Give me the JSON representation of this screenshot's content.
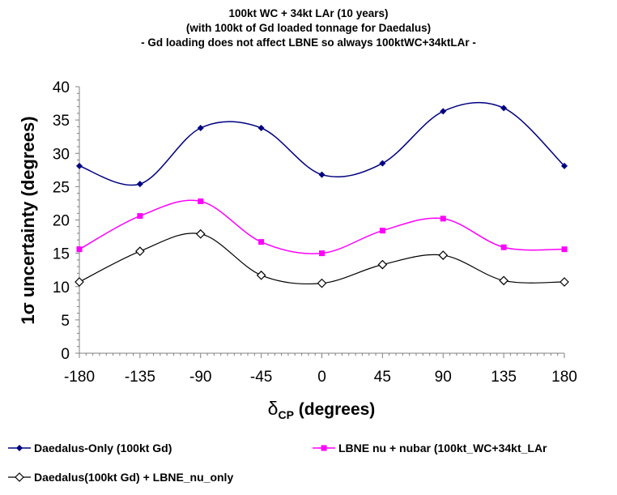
{
  "chart_data": {
    "type": "line",
    "title": [
      "100kt WC + 34kt LAr (10 years)",
      "(with 100kt of Gd loaded tonnage for Daedalus)",
      "- Gd loading does not affect LBNE so always 100ktWC+34ktLAr -"
    ],
    "xlabel_main": "δ",
    "xlabel_sub": "CP",
    "xlabel_rest": " (degrees)",
    "ylabel": "1σ uncertainty (degrees)",
    "x": [
      -180,
      -135,
      -90,
      -45,
      0,
      45,
      90,
      135,
      180
    ],
    "xlim": [
      -180,
      180
    ],
    "ylim": [
      0,
      40
    ],
    "xticks": [
      "-180",
      "-135",
      "-90",
      "-45",
      "0",
      "45",
      "90",
      "135",
      "180"
    ],
    "yticks": [
      "0",
      "5",
      "10",
      "15",
      "20",
      "25",
      "30",
      "35",
      "40"
    ],
    "grid": false,
    "smooth": true,
    "legend_position": "bottom",
    "series": [
      {
        "name": "Daedalus-Only (100kt Gd)",
        "color": "#000080",
        "marker": "filled-diamond",
        "values": [
          28.1,
          25.4,
          33.8,
          33.8,
          26.8,
          28.5,
          36.3,
          36.8,
          28.1
        ]
      },
      {
        "name": "LBNE nu + nubar (100kt_WC+34kt_LAr",
        "color": "#ff00ff",
        "marker": "filled-square",
        "values": [
          15.6,
          20.6,
          22.8,
          16.7,
          15.0,
          18.4,
          20.2,
          15.9,
          15.6
        ]
      },
      {
        "name": "Daedalus(100kt Gd) + LBNE_nu_only",
        "color": "#000000",
        "marker": "open-diamond",
        "values": [
          10.7,
          15.3,
          17.9,
          11.7,
          10.5,
          13.3,
          14.7,
          10.9,
          10.7
        ]
      }
    ]
  }
}
